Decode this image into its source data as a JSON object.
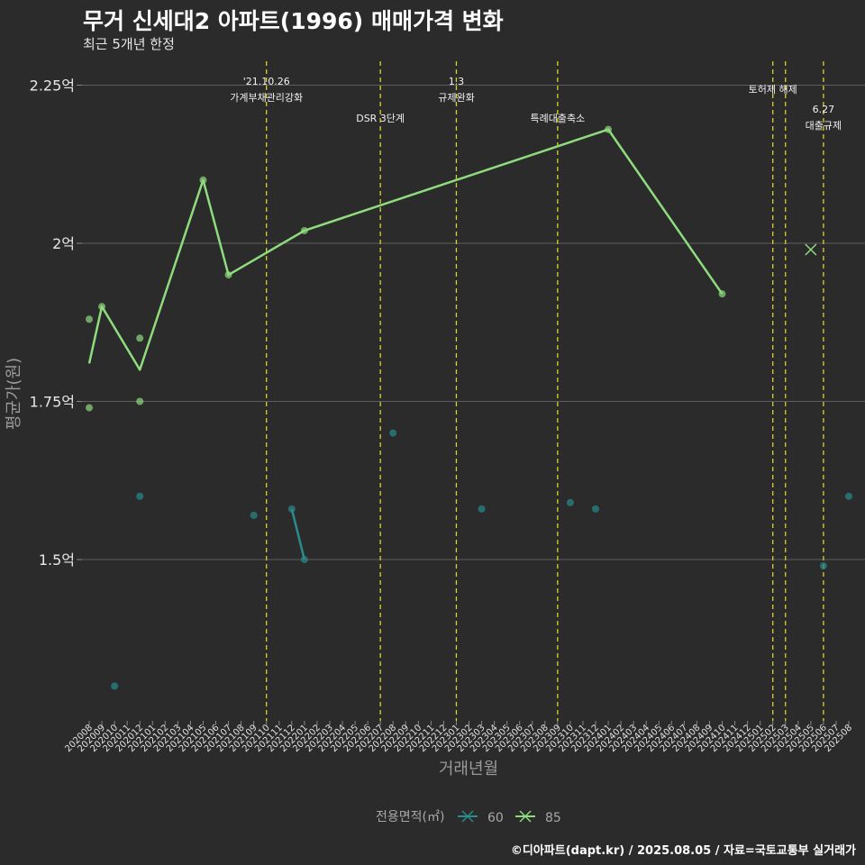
{
  "title": "무거 신세대2 아파트(1996) 매매가격 변화",
  "subtitle": "최근 5개년 한정",
  "caption": "©디아파트(dapt.kr) / 2025.08.05 / 자료=국토교통부 실거래가",
  "colors": {
    "background": "#2b2b2c",
    "grid": "#5e5e5e",
    "series_60": "#2a8c8c",
    "series_85": "#8fdc7d",
    "event_line": "#d4d42a"
  },
  "chart_data": {
    "type": "line",
    "xlabel": "거래년월",
    "ylabel": "평균가(원)",
    "ylim": [
      1.22,
      2.27
    ],
    "yticks": [
      {
        "value": 1.5,
        "label": "1.5억"
      },
      {
        "value": 1.75,
        "label": "1.75억"
      },
      {
        "value": 2.0,
        "label": "2억"
      },
      {
        "value": 2.25,
        "label": "2.25억"
      }
    ],
    "categories": [
      "202008",
      "202009",
      "202010",
      "202011",
      "202012",
      "202101",
      "202102",
      "202103",
      "202104",
      "202105",
      "202106",
      "202107",
      "202108",
      "202109",
      "202110",
      "202111",
      "202112",
      "202201",
      "202202",
      "202203",
      "202204",
      "202205",
      "202206",
      "202207",
      "202208",
      "202209",
      "202210",
      "202211",
      "202212",
      "202301",
      "202302",
      "202303",
      "202304",
      "202305",
      "202306",
      "202307",
      "202308",
      "202309",
      "202310",
      "202311",
      "202312",
      "202401",
      "202402",
      "202403",
      "202404",
      "202405",
      "202406",
      "202407",
      "202408",
      "202409",
      "202410",
      "202411",
      "202412",
      "202501",
      "202502",
      "202503",
      "202504",
      "202505",
      "202506",
      "202507",
      "202508"
    ],
    "legend_title": "전용면적(㎡)",
    "series": [
      {
        "name": "60",
        "color_key": "series_60",
        "line": [
          [
            "202112",
            1.58
          ],
          [
            "202201",
            1.5
          ]
        ],
        "points": [
          {
            "x": "202010",
            "y": 1.3
          },
          {
            "x": "202012",
            "y": 1.6
          },
          {
            "x": "202109",
            "y": 1.57
          },
          {
            "x": "202112",
            "y": 1.58
          },
          {
            "x": "202201",
            "y": 1.5
          },
          {
            "x": "202208",
            "y": 1.7
          },
          {
            "x": "202303",
            "y": 1.58
          },
          {
            "x": "202310",
            "y": 1.59
          },
          {
            "x": "202312",
            "y": 1.58
          },
          {
            "x": "202506",
            "y": 1.49
          },
          {
            "x": "202508",
            "y": 1.6
          }
        ]
      },
      {
        "name": "85",
        "color_key": "series_85",
        "line": [
          [
            "202008",
            1.81
          ],
          [
            "202009",
            1.9
          ],
          [
            "202012",
            1.8
          ],
          [
            "202105",
            2.1
          ],
          [
            "202107",
            1.95
          ],
          [
            "202201",
            2.02
          ],
          [
            "202401",
            2.18
          ],
          [
            "202410",
            1.92
          ]
        ],
        "points": [
          {
            "x": "202008",
            "y": 1.88
          },
          {
            "x": "202008",
            "y": 1.74
          },
          {
            "x": "202009",
            "y": 1.9
          },
          {
            "x": "202012",
            "y": 1.85
          },
          {
            "x": "202012",
            "y": 1.75
          },
          {
            "x": "202105",
            "y": 2.1
          },
          {
            "x": "202107",
            "y": 1.95
          },
          {
            "x": "202201",
            "y": 2.02
          },
          {
            "x": "202401",
            "y": 2.18
          },
          {
            "x": "202410",
            "y": 1.92
          }
        ],
        "cross_points": [
          {
            "x": "202505",
            "y": 1.99
          }
        ]
      }
    ],
    "events": [
      {
        "x": "202110",
        "lines": [
          "'21.10.26",
          "가계부채관리강화"
        ],
        "level": 1
      },
      {
        "x": "202207",
        "lines": [
          "DSR 3단계"
        ],
        "level": 2
      },
      {
        "x": "202301",
        "lines": [
          "1.3",
          "규제완화"
        ],
        "level": 1
      },
      {
        "x": "202309",
        "lines": [
          "특례대출축소"
        ],
        "level": 2
      },
      {
        "x": "202502",
        "lines": [
          "토허제 해제"
        ],
        "level": 1
      },
      {
        "x": "202503",
        "lines": [],
        "level": 0
      },
      {
        "x": "202506",
        "lines": [
          "6.27",
          "대출규제"
        ],
        "level": 3
      }
    ]
  }
}
